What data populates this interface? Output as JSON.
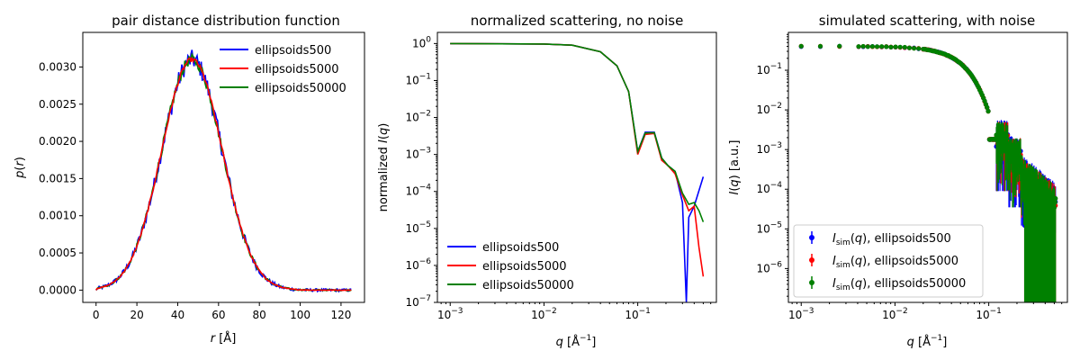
{
  "chart_data": [
    {
      "type": "line",
      "title": "pair distance distribution function",
      "xlabel": "r [Å]",
      "ylabel": "p(r)",
      "xscale": "linear",
      "yscale": "linear",
      "xlim": [
        -6.5,
        131.5
      ],
      "ylim": [
        -0.000165,
        0.003465
      ],
      "xticks": [
        0,
        20,
        40,
        60,
        80,
        100,
        120
      ],
      "yticks": [
        0.0,
        0.0005,
        0.001,
        0.0015,
        0.002,
        0.0025,
        0.003
      ],
      "yticklabels": [
        "0.0000",
        "0.0005",
        "0.0010",
        "0.0015",
        "0.0020",
        "0.0025",
        "0.0030"
      ],
      "legend": "top-right",
      "series": [
        {
          "name": "ellipsoids500",
          "color": "#0000ff",
          "peak_r": 47,
          "peak": 0.0031,
          "noise": 0.00013
        },
        {
          "name": "ellipsoids5000",
          "color": "#ff0000",
          "peak_r": 47,
          "peak": 0.0031,
          "noise": 3e-05
        },
        {
          "name": "ellipsoids50000",
          "color": "#008000",
          "peak_r": 47,
          "peak": 0.0031,
          "noise": 7e-05
        }
      ]
    },
    {
      "type": "line",
      "title": "normalized scattering, no noise",
      "xlabel": "q [Å⁻¹]",
      "ylabel": "normalized I(q)",
      "xscale": "log",
      "yscale": "log",
      "xlim": [
        0.00073,
        0.69
      ],
      "ylim": [
        1e-07,
        2.0
      ],
      "xticks": [
        0.001,
        0.01,
        0.1
      ],
      "xticklabels": [
        "10^-3",
        "10^-2",
        "10^-1"
      ],
      "yticks": [
        1e-07,
        1e-06,
        1e-05,
        0.0001,
        0.001,
        0.01,
        0.1,
        1
      ],
      "yticklabels": [
        "10^-7",
        "10^-6",
        "10^-5",
        "10^-4",
        "10^-3",
        "10^-2",
        "10^-1",
        "10^0"
      ],
      "legend": "bottom-left",
      "series": [
        {
          "name": "ellipsoids500",
          "color": "#0000ff",
          "x": [
            0.001,
            0.01,
            0.02,
            0.04,
            0.06,
            0.08,
            0.1,
            0.12,
            0.15,
            0.18,
            0.21,
            0.25,
            0.3,
            0.33,
            0.35,
            0.4,
            0.5
          ],
          "y": [
            1.0,
            0.97,
            0.9,
            0.6,
            0.25,
            0.05,
            0.0012,
            0.004,
            0.004,
            0.0008,
            0.0005,
            0.00035,
            5e-05,
            1e-07,
            2e-05,
            4e-05,
            0.00025
          ]
        },
        {
          "name": "ellipsoids5000",
          "color": "#ff0000",
          "x": [
            0.001,
            0.01,
            0.02,
            0.04,
            0.06,
            0.08,
            0.1,
            0.12,
            0.15,
            0.18,
            0.21,
            0.25,
            0.3,
            0.35,
            0.4,
            0.45,
            0.5
          ],
          "y": [
            1.0,
            0.97,
            0.9,
            0.6,
            0.25,
            0.05,
            0.001,
            0.0035,
            0.0037,
            0.0007,
            0.0005,
            0.0003,
            8e-05,
            3e-05,
            4e-05,
            3e-06,
            5e-07
          ]
        },
        {
          "name": "ellipsoids50000",
          "color": "#008000",
          "x": [
            0.001,
            0.01,
            0.02,
            0.04,
            0.06,
            0.08,
            0.1,
            0.12,
            0.15,
            0.18,
            0.21,
            0.25,
            0.3,
            0.35,
            0.4,
            0.45,
            0.5
          ],
          "y": [
            1.0,
            0.97,
            0.9,
            0.6,
            0.25,
            0.05,
            0.0012,
            0.0038,
            0.0039,
            0.0008,
            0.0005,
            0.00035,
            9e-05,
            4.5e-05,
            5e-05,
            3e-05,
            1.5e-05
          ]
        }
      ]
    },
    {
      "type": "scatter",
      "title": "simulated scattering, with noise",
      "xlabel": "q [Å⁻¹]",
      "ylabel": "I(q) [a.u.]",
      "xscale": "log",
      "yscale": "log",
      "xlim": [
        0.00073,
        0.69
      ],
      "ylim": [
        1.4e-07,
        0.9
      ],
      "xticks": [
        0.001,
        0.01,
        0.1
      ],
      "xticklabels": [
        "10^-3",
        "10^-2",
        "10^-1"
      ],
      "yticks": [
        1e-06,
        1e-05,
        0.0001,
        0.001,
        0.01,
        0.1
      ],
      "yticklabels": [
        "10^-6",
        "10^-5",
        "10^-4",
        "10^-3",
        "10^-2",
        "10^-1"
      ],
      "legend": "bottom-left",
      "series": [
        {
          "name": "I_sim(q), ellipsoids500",
          "color": "#0000ff",
          "amplitude": 0.4
        },
        {
          "name": "I_sim(q), ellipsoids5000",
          "color": "#ff0000",
          "amplitude": 0.4
        },
        {
          "name": "I_sim(q), ellipsoids50000",
          "color": "#008000",
          "amplitude": 0.4
        }
      ]
    }
  ]
}
